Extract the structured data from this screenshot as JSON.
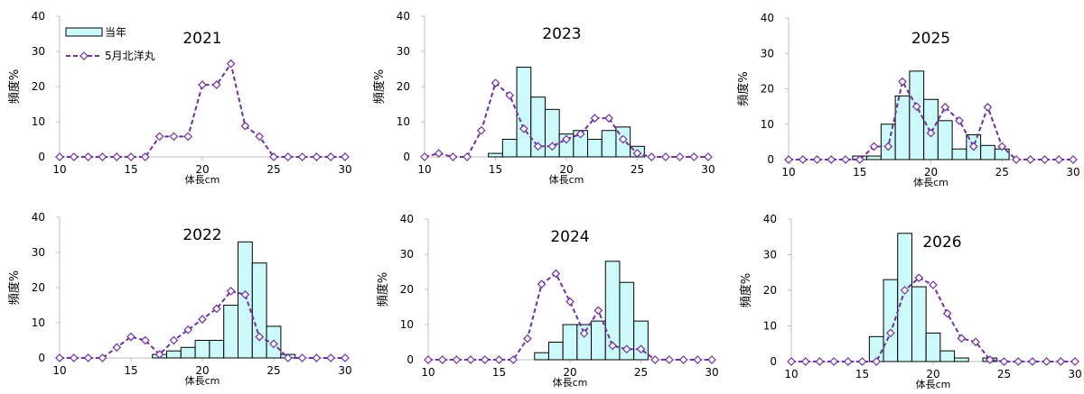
{
  "legend": {
    "bar_label": "当年",
    "line_label": "5月北洋丸"
  },
  "colors": {
    "bar_fill": "#ccfafa",
    "bar_stroke": "#000000",
    "line": "#7030a0",
    "marker_fill": "#ffffff",
    "axis": "#bfbfbf"
  },
  "chart_data": [
    {
      "type": "bar",
      "title": "2021",
      "xlabel": "体長cm",
      "ylabel": "頻度%",
      "xlim": [
        10,
        30
      ],
      "ylim": [
        0,
        40
      ],
      "xticks": [
        10,
        15,
        20,
        25,
        30
      ],
      "yticks": [
        0,
        10,
        20,
        30,
        40
      ],
      "grid": false,
      "legend": "top-left",
      "series": [
        {
          "name": "当年",
          "x": [],
          "values": []
        },
        {
          "name": "5月北洋丸",
          "x": [
            10,
            11,
            12,
            13,
            14,
            15,
            16,
            17,
            18,
            19,
            20,
            21,
            22,
            23,
            24,
            25,
            26,
            27,
            28,
            29,
            30
          ],
          "values": [
            0,
            0,
            0,
            0,
            0,
            0,
            0,
            5.8,
            5.8,
            5.8,
            20.5,
            20.5,
            26.5,
            8.8,
            5.8,
            0,
            0,
            0,
            0,
            0,
            0
          ]
        }
      ]
    },
    {
      "type": "bar",
      "title": "2023",
      "xlabel": "体長cm",
      "ylabel": "頻度%",
      "xlim": [
        10,
        30
      ],
      "ylim": [
        0,
        40
      ],
      "xticks": [
        10,
        15,
        20,
        25,
        30
      ],
      "yticks": [
        0,
        10,
        20,
        30,
        40
      ],
      "grid": false,
      "series": [
        {
          "name": "当年",
          "x": [
            15,
            16,
            17,
            18,
            19,
            20,
            21,
            22,
            23,
            24,
            25
          ],
          "values": [
            1,
            5,
            25.5,
            17,
            13.5,
            6.5,
            7.5,
            5,
            7.5,
            8.5,
            3
          ]
        },
        {
          "name": "5月北洋丸",
          "x": [
            10,
            11,
            12,
            13,
            14,
            15,
            16,
            17,
            18,
            19,
            20,
            21,
            22,
            23,
            24,
            25,
            26,
            27,
            28,
            29,
            30
          ],
          "values": [
            0,
            1,
            0,
            0,
            7.5,
            21,
            17.5,
            8,
            3,
            3,
            5,
            6.5,
            11,
            11,
            5,
            1,
            0,
            0,
            0,
            0,
            0
          ]
        }
      ]
    },
    {
      "type": "bar",
      "title": "2025",
      "xlabel": "体長cm",
      "ylabel": "頻度%",
      "xlim": [
        10,
        30
      ],
      "ylim": [
        0,
        40
      ],
      "xticks": [
        10,
        15,
        20,
        25,
        30
      ],
      "yticks": [
        0,
        10,
        20,
        30,
        40
      ],
      "grid": false,
      "series": [
        {
          "name": "当年",
          "x": [
            15,
            16,
            17,
            18,
            19,
            20,
            21,
            22,
            23,
            24,
            25
          ],
          "values": [
            1,
            1,
            10,
            18,
            25,
            17,
            11,
            3,
            7,
            4,
            3
          ]
        },
        {
          "name": "5月北洋丸",
          "x": [
            10,
            11,
            12,
            13,
            14,
            15,
            16,
            17,
            18,
            19,
            20,
            21,
            22,
            23,
            24,
            25,
            26,
            27,
            28,
            29,
            30
          ],
          "values": [
            0,
            0,
            0,
            0,
            0,
            0,
            3.7,
            3.7,
            22,
            15,
            7.5,
            14.8,
            11,
            3.7,
            14.8,
            3.7,
            0,
            0,
            0,
            0,
            0
          ]
        }
      ]
    },
    {
      "type": "bar",
      "title": "2022",
      "xlabel": "体長cm",
      "ylabel": "頻度%",
      "xlim": [
        10,
        30
      ],
      "ylim": [
        0,
        40
      ],
      "xticks": [
        10,
        15,
        20,
        25,
        30
      ],
      "yticks": [
        0,
        10,
        20,
        30,
        40
      ],
      "grid": false,
      "series": [
        {
          "name": "当年",
          "x": [
            17,
            18,
            19,
            20,
            21,
            22,
            23,
            24,
            25,
            26
          ],
          "values": [
            1,
            2,
            3,
            5,
            5,
            15,
            33,
            27,
            9,
            1
          ]
        },
        {
          "name": "5月北洋丸",
          "x": [
            10,
            11,
            12,
            13,
            14,
            15,
            16,
            17,
            18,
            19,
            20,
            21,
            22,
            23,
            24,
            25,
            26,
            27,
            28,
            29,
            30
          ],
          "values": [
            0,
            0,
            0,
            0,
            3,
            6,
            5,
            1,
            5,
            8,
            11,
            14,
            19,
            18,
            6,
            4,
            0,
            0,
            0,
            0,
            0
          ]
        }
      ]
    },
    {
      "type": "bar",
      "title": "2024",
      "xlabel": "体長cm",
      "ylabel": "頻度%",
      "xlim": [
        10,
        30
      ],
      "ylim": [
        0,
        40
      ],
      "xticks": [
        10,
        15,
        20,
        25,
        30
      ],
      "yticks": [
        0,
        10,
        20,
        30,
        40
      ],
      "grid": false,
      "series": [
        {
          "name": "当年",
          "x": [
            18,
            19,
            20,
            21,
            22,
            23,
            24,
            25
          ],
          "values": [
            2,
            5,
            10,
            10,
            11,
            28,
            22,
            11
          ]
        },
        {
          "name": "5月北洋丸",
          "x": [
            10,
            11,
            12,
            13,
            14,
            15,
            16,
            17,
            18,
            19,
            20,
            21,
            22,
            23,
            24,
            25,
            26,
            27,
            28,
            29,
            30
          ],
          "values": [
            0,
            0,
            0,
            0,
            0,
            0,
            0,
            6,
            21.5,
            24.5,
            16.5,
            7.5,
            14,
            4,
            3,
            3,
            0,
            0,
            0,
            0,
            0
          ]
        }
      ]
    },
    {
      "type": "bar",
      "title": "2026",
      "xlabel": "体長cm",
      "ylabel": "頻度%",
      "xlim": [
        10,
        30
      ],
      "ylim": [
        0,
        40
      ],
      "xticks": [
        10,
        15,
        20,
        25,
        30
      ],
      "yticks": [
        0,
        10,
        20,
        30,
        40
      ],
      "grid": false,
      "series": [
        {
          "name": "当年",
          "x": [
            16,
            17,
            18,
            19,
            20,
            21,
            22,
            23,
            24
          ],
          "values": [
            7,
            23,
            36,
            21,
            8,
            3,
            1,
            0,
            1
          ]
        },
        {
          "name": "5月北洋丸",
          "x": [
            10,
            11,
            12,
            13,
            14,
            15,
            16,
            17,
            18,
            19,
            20,
            21,
            22,
            23,
            24,
            25,
            26,
            27,
            28,
            29,
            30
          ],
          "values": [
            0,
            0,
            0,
            0,
            0,
            0,
            0,
            8,
            20,
            23.5,
            21.5,
            13.5,
            6.5,
            5.5,
            0.5,
            0,
            0,
            0,
            0,
            0,
            0
          ]
        }
      ]
    }
  ]
}
